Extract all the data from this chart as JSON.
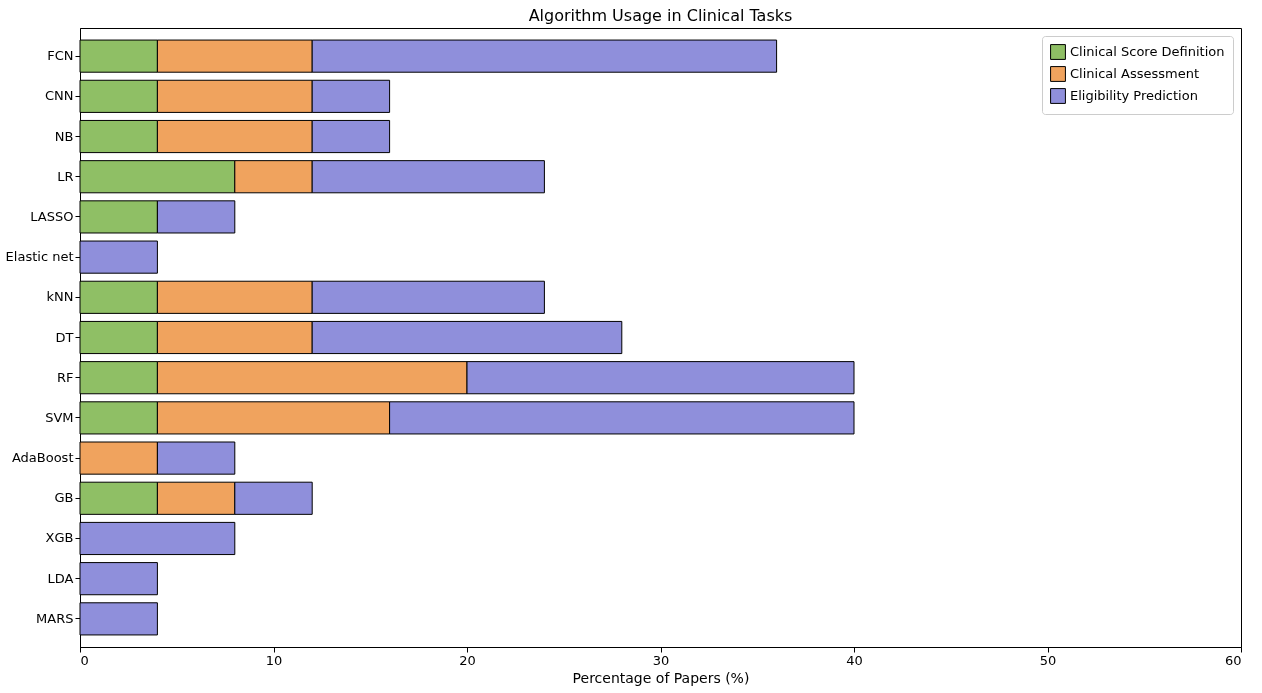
{
  "chart_data": {
    "type": "bar",
    "orientation": "horizontal",
    "stacked": true,
    "title": "Algorithm Usage in Clinical Tasks",
    "xlabel": "Percentage of Papers (%)",
    "categories": [
      "FCN",
      "CNN",
      "NB",
      "LR",
      "LASSO",
      "Elastic net",
      "kNN",
      "DT",
      "RF",
      "SVM",
      "AdaBoost",
      "GB",
      "XGB",
      "LDA",
      "MARS"
    ],
    "series": [
      {
        "name": "Clinical Score Definition",
        "color": "#8fbf65",
        "values": [
          4,
          4,
          4,
          8,
          4,
          null,
          4,
          4,
          4,
          4,
          null,
          4,
          null,
          null,
          null
        ]
      },
      {
        "name": "Clinical Assessment",
        "color": "#f0a35e",
        "values": [
          8,
          8,
          8,
          4,
          null,
          null,
          8,
          8,
          16,
          12,
          4,
          4,
          null,
          null,
          null
        ]
      },
      {
        "name": "Eligibility Prediction",
        "color": "#8f8fdb",
        "values": [
          24,
          4,
          4,
          12,
          4,
          4,
          12,
          16,
          20,
          24,
          4,
          4,
          8,
          4,
          4
        ]
      }
    ],
    "xlim": [
      0,
      60
    ],
    "xticks": [
      0,
      10,
      20,
      30,
      40,
      50,
      60
    ],
    "grid": false,
    "legend": "top right"
  }
}
